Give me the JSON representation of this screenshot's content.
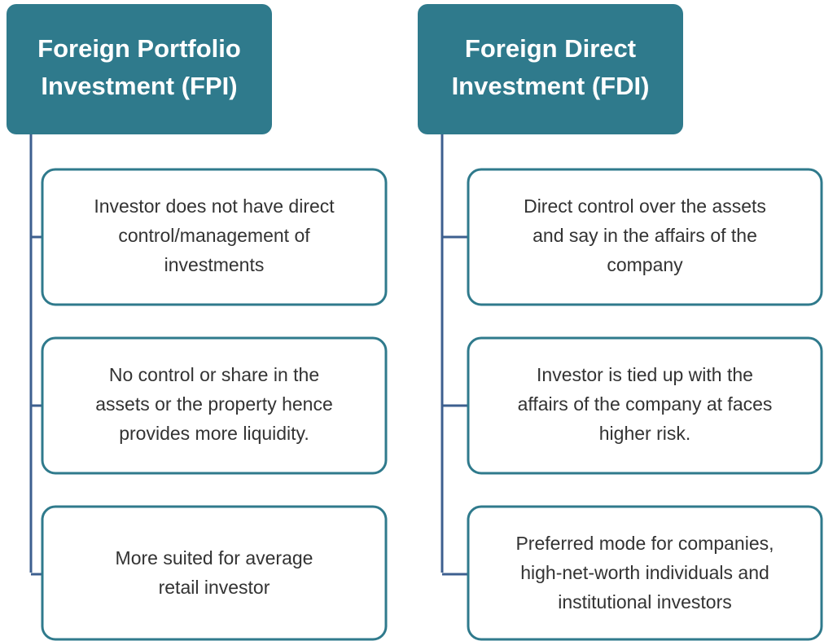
{
  "columns": [
    {
      "title": [
        "Foreign Portfolio",
        "Investment (FPI)"
      ],
      "items": [
        [
          "Investor does not have direct",
          "control/management of",
          "investments"
        ],
        [
          "No control or share in the",
          "assets or the property hence",
          "provides more liquidity."
        ],
        [
          "More suited for average",
          "retail investor"
        ]
      ]
    },
    {
      "title": [
        "Foreign Direct",
        "Investment (FDI)"
      ],
      "items": [
        [
          "Direct control over the assets",
          "and say in the affairs of the",
          "company"
        ],
        [
          "Investor is tied up with the",
          "affairs of the company at faces",
          "higher risk."
        ],
        [
          "Preferred mode for companies,",
          "high-net-worth individuals and",
          "institutional investors"
        ]
      ]
    }
  ]
}
